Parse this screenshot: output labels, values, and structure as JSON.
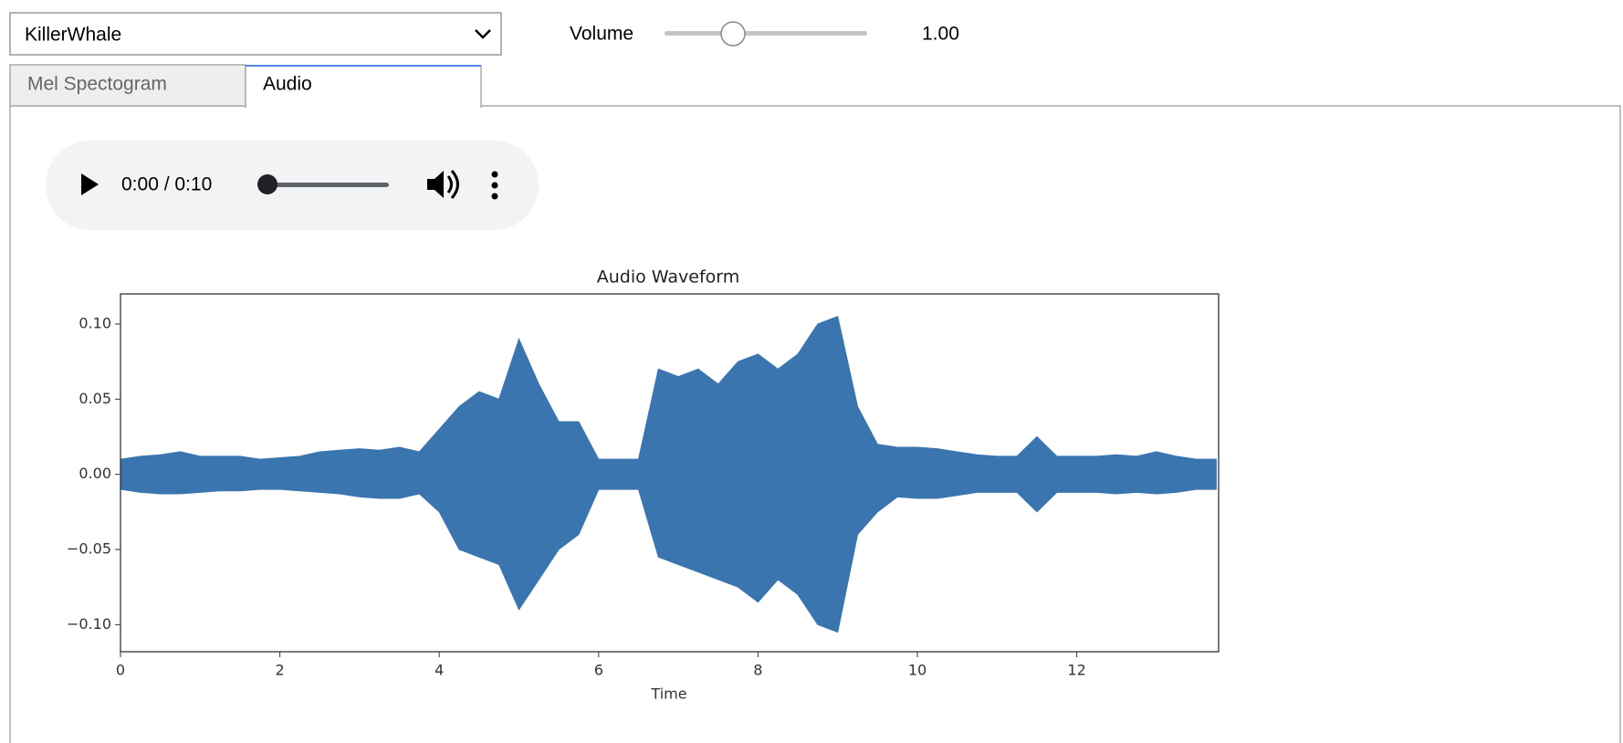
{
  "dropdown": {
    "value": "KillerWhale"
  },
  "volume": {
    "label": "Volume",
    "value": "1.00"
  },
  "tabs": [
    "Mel Spectogram",
    "Audio"
  ],
  "player": {
    "time": "0:00 / 0:10"
  },
  "chart_data": {
    "type": "area",
    "title": "Audio Waveform",
    "x_label": "Time",
    "x": [
      0,
      0.25,
      0.5,
      0.75,
      1,
      1.25,
      1.5,
      1.75,
      2,
      2.25,
      2.5,
      2.75,
      3,
      3.25,
      3.5,
      3.75,
      4,
      4.25,
      4.5,
      4.75,
      5,
      5.25,
      5.5,
      5.75,
      6,
      6.25,
      6.5,
      6.75,
      7,
      7.25,
      7.5,
      7.75,
      8,
      8.25,
      8.5,
      8.75,
      9,
      9.25,
      9.5,
      9.75,
      10,
      10.25,
      10.5,
      10.75,
      11,
      11.25,
      11.5,
      11.75,
      12,
      12.25,
      12.5,
      12.75,
      13,
      13.25,
      13.5,
      13.75
    ],
    "series": [
      {
        "color": "#3b75af",
        "values": [
          0.01,
          0.012,
          0.013,
          0.015,
          0.012,
          0.012,
          0.012,
          0.01,
          0.011,
          0.012,
          0.015,
          0.016,
          0.017,
          0.016,
          0.018,
          0.015,
          0.03,
          0.045,
          0.055,
          0.05,
          0.09,
          0.06,
          0.035,
          0.035,
          0.01,
          0.01,
          0.01,
          0.07,
          0.065,
          0.07,
          0.06,
          0.075,
          0.08,
          0.07,
          0.08,
          0.1,
          0.105,
          0.045,
          0.02,
          0.018,
          0.018,
          0.017,
          0.015,
          0.013,
          0.012,
          0.012,
          0.025,
          0.012,
          0.012,
          0.012,
          0.013,
          0.012,
          0.015,
          0.012,
          0.01,
          0.01
        ]
      },
      {
        "color": "#3b75af",
        "values": [
          -0.01,
          -0.012,
          -0.013,
          -0.013,
          -0.012,
          -0.011,
          -0.011,
          -0.01,
          -0.01,
          -0.011,
          -0.012,
          -0.013,
          -0.015,
          -0.016,
          -0.016,
          -0.013,
          -0.025,
          -0.05,
          -0.055,
          -0.06,
          -0.09,
          -0.07,
          -0.05,
          -0.04,
          -0.01,
          -0.01,
          -0.01,
          -0.055,
          -0.06,
          -0.065,
          -0.07,
          -0.075,
          -0.085,
          -0.07,
          -0.08,
          -0.1,
          -0.105,
          -0.04,
          -0.025,
          -0.015,
          -0.016,
          -0.016,
          -0.014,
          -0.012,
          -0.012,
          -0.012,
          -0.025,
          -0.012,
          -0.012,
          -0.012,
          -0.013,
          -0.012,
          -0.013,
          -0.012,
          -0.01,
          -0.01
        ]
      }
    ],
    "xlim": [
      0,
      13.78
    ],
    "ylim": [
      -0.118,
      0.12
    ],
    "xticks": [
      0,
      2,
      4,
      6,
      8,
      10,
      12
    ],
    "yticks": [
      {
        "value": -0.1,
        "label": "−0.10"
      },
      {
        "value": -0.05,
        "label": "−0.05"
      },
      {
        "value": 0,
        "label": "0.00"
      },
      0.05,
      {
        "value": 0.1,
        "label": "0.10"
      }
    ]
  }
}
